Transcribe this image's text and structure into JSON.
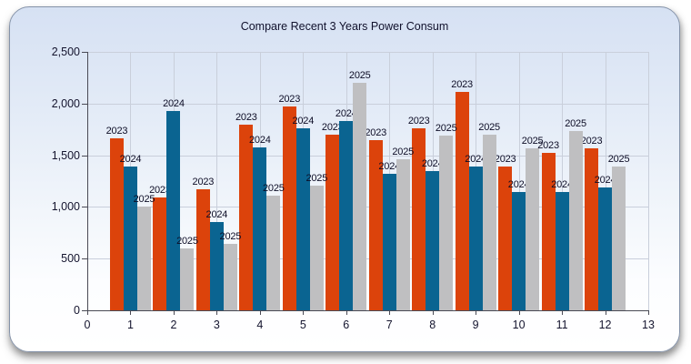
{
  "window": {
    "title": "Compare Recent 3 Years Power Consum"
  },
  "chart_data": {
    "type": "bar",
    "title": "Compare Recent 3 Years Power Consum",
    "xlabel": "",
    "ylabel": "",
    "categories": [
      1,
      2,
      3,
      4,
      5,
      6,
      7,
      8,
      9,
      10,
      11,
      12
    ],
    "series": [
      {
        "name": "2023",
        "color": "#dc430b",
        "values": [
          1660,
          1090,
          1170,
          1800,
          1970,
          1700,
          1650,
          1760,
          2110,
          1390,
          1520,
          1570
        ]
      },
      {
        "name": "2024",
        "color": "#0a6491",
        "values": [
          1390,
          1930,
          850,
          1580,
          1760,
          1830,
          1320,
          1350,
          1390,
          1140,
          1140,
          1190
        ]
      },
      {
        "name": "2025",
        "color": "#bfbfc1",
        "values": [
          1000,
          600,
          640,
          1110,
          1210,
          2200,
          1460,
          1690,
          1700,
          1570,
          1730,
          1390
        ]
      }
    ],
    "bar_label_mode": "series-name-above-each-bar",
    "xlim": [
      0,
      13
    ],
    "ylim": [
      0,
      2500
    ],
    "ytick_values": [
      0,
      500,
      1000,
      1500,
      2000,
      2500
    ],
    "ytick_labels": [
      "0",
      "500",
      "1,000",
      "1,500",
      "2,000",
      "2,500"
    ],
    "xtick_values": [
      0,
      1,
      2,
      3,
      4,
      5,
      6,
      7,
      8,
      9,
      10,
      11,
      12,
      13
    ],
    "xtick_labels": [
      "0",
      "1",
      "2",
      "3",
      "4",
      "5",
      "6",
      "7",
      "8",
      "9",
      "10",
      "11",
      "12",
      "13"
    ],
    "grid": true,
    "legend": "none",
    "gridline_color": "#c9cfdb",
    "text_color": "#14142e"
  }
}
